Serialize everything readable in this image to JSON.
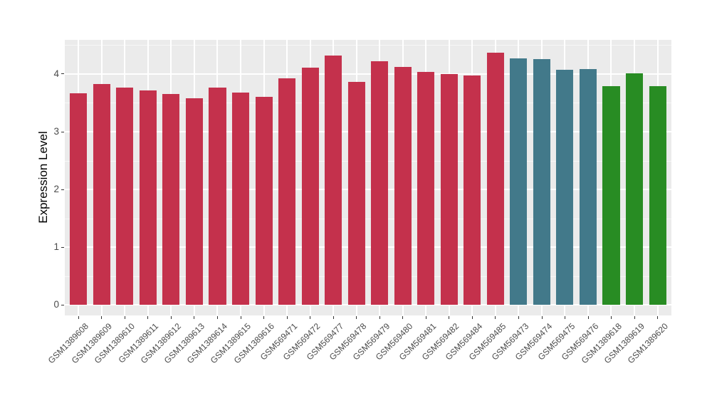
{
  "figure": {
    "background": "#FFFFFF",
    "panel_background": "#EBEBEB",
    "gridline_color": "#FFFFFF",
    "tick_color": "#333333",
    "axis_text_color": "#4A4A4A"
  },
  "chart_data": {
    "type": "bar",
    "title": "",
    "xlabel": "",
    "ylabel": "Expression Level",
    "ylim": [
      0,
      4.6
    ],
    "yticks": [
      0,
      1,
      2,
      3,
      4
    ],
    "yminor_ticks": [
      0.5,
      1.5,
      2.5,
      3.5,
      4.5
    ],
    "grid": "on",
    "legend": "none",
    "categories": [
      "GSM1389608",
      "GSM1389609",
      "GSM1389610",
      "GSM1389611",
      "GSM1389612",
      "GSM1389613",
      "GSM1389614",
      "GSM1389615",
      "GSM1389616",
      "GSM569471",
      "GSM569472",
      "GSM569477",
      "GSM569478",
      "GSM569479",
      "GSM569480",
      "GSM569481",
      "GSM569482",
      "GSM569484",
      "GSM569485",
      "GSM569473",
      "GSM569474",
      "GSM569475",
      "GSM569476",
      "GSM1389618",
      "GSM1389619",
      "GSM1389620"
    ],
    "values": [
      3.67,
      3.83,
      3.77,
      3.71,
      3.65,
      3.58,
      3.77,
      3.68,
      3.61,
      3.93,
      4.11,
      4.32,
      3.86,
      4.22,
      4.12,
      4.03,
      4.0,
      3.97,
      4.37,
      4.27,
      4.26,
      4.07,
      4.08,
      3.79,
      4.01,
      3.79
    ],
    "bar_colors": [
      "#C4314C",
      "#C4314C",
      "#C4314C",
      "#C4314C",
      "#C4314C",
      "#C4314C",
      "#C4314C",
      "#C4314C",
      "#C4314C",
      "#C4314C",
      "#C4314C",
      "#C4314C",
      "#C4314C",
      "#C4314C",
      "#C4314C",
      "#C4314C",
      "#C4314C",
      "#C4314C",
      "#C4314C",
      "#42798A",
      "#42798A",
      "#42798A",
      "#42798A",
      "#288C23",
      "#288C23",
      "#288C23"
    ],
    "group_palette": {
      "red": "#C4314C",
      "teal": "#42798A",
      "green": "#288C23"
    }
  }
}
